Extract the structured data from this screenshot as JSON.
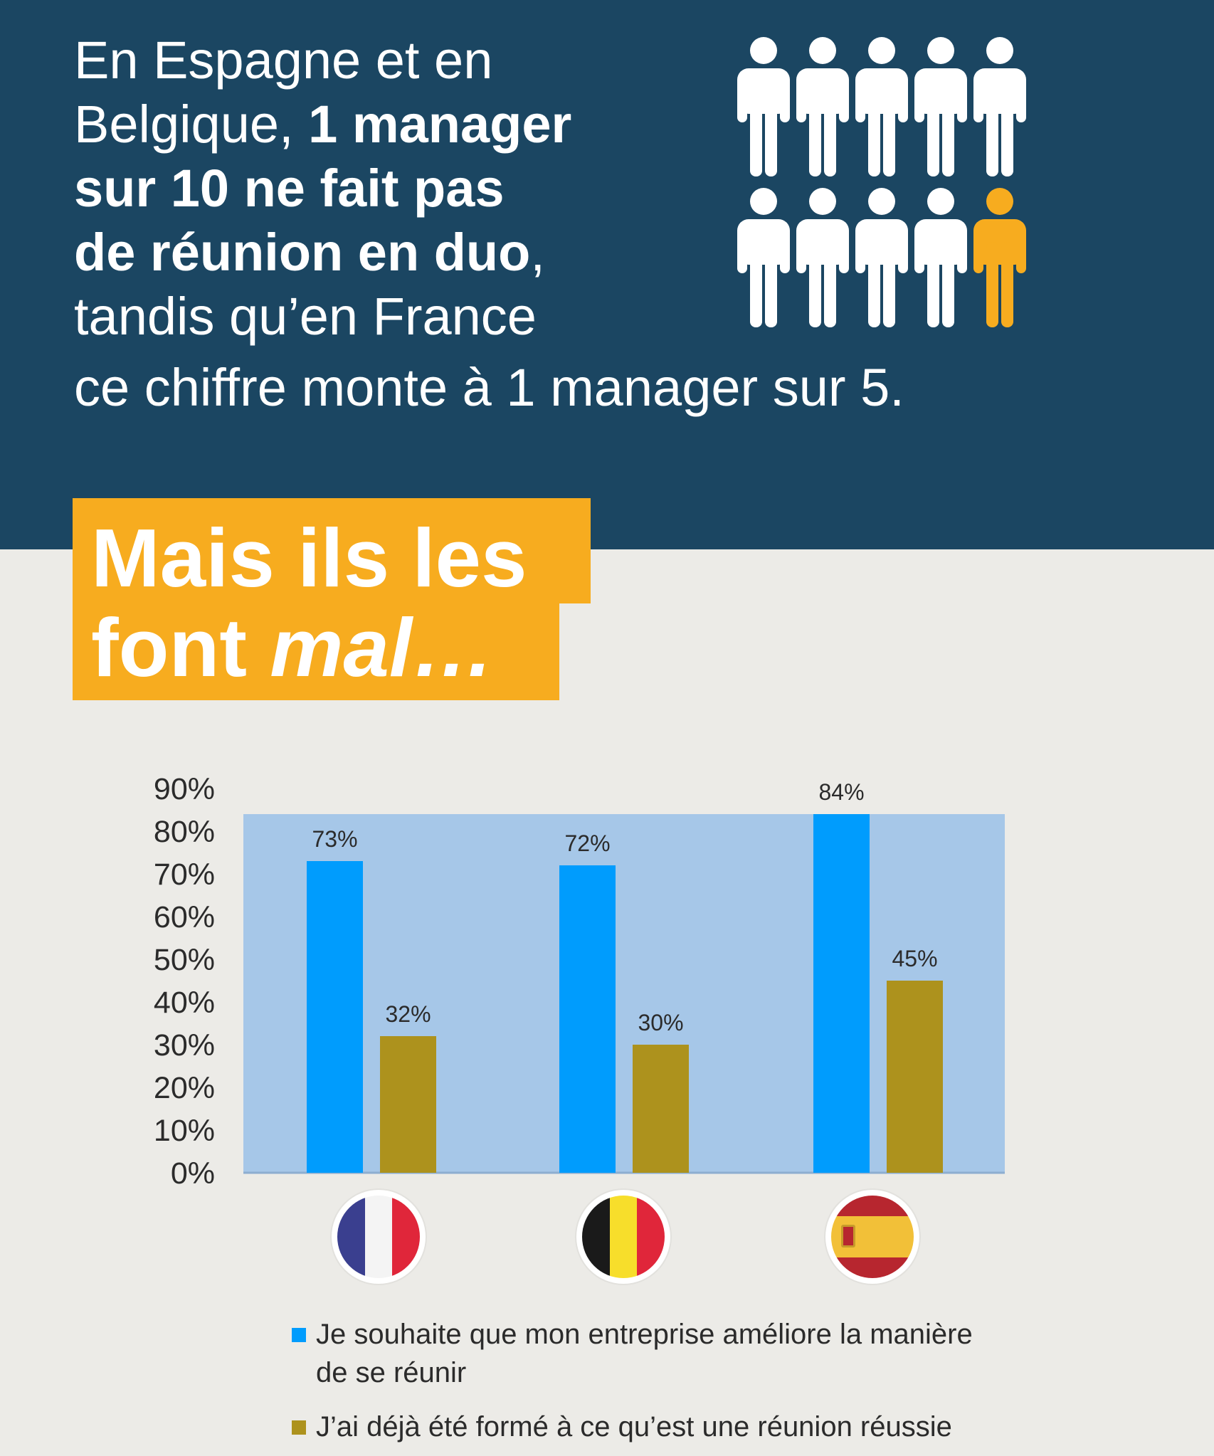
{
  "headline": {
    "line1": "En Espagne et en",
    "line2_normal": "Belgique, ",
    "line2_bold": "1 manager",
    "line3_bold": "sur 10 ne fait pas",
    "line4_bold": "de réunion en duo",
    "line4_tail": ",",
    "line5": "tandis qu’en France",
    "line6": "ce chiffre monte à 1 manager sur 5."
  },
  "people_icons": {
    "total": 10,
    "highlighted_index": 9,
    "color_default": "#FFFFFF",
    "color_highlight": "#F7AC1F"
  },
  "banner": {
    "line1": "Mais ils les",
    "line2_normal": "font ",
    "line2_italic": "mal…"
  },
  "colors": {
    "navy": "#1B4662",
    "orange": "#F7AC1F",
    "background": "#ECEBE7",
    "plot_bg": "#A6C7E8",
    "series1": "#009CFD",
    "series2": "#AD921D"
  },
  "chart_data": {
    "type": "bar",
    "categories": [
      "France",
      "Belgique",
      "Espagne"
    ],
    "series": [
      {
        "name": "Je souhaite que mon entreprise améliore la manière de se réunir",
        "values": [
          73,
          72,
          84
        ],
        "labels": [
          "73%",
          "72%",
          "84%"
        ],
        "color": "#009CFD"
      },
      {
        "name": "J’ai déjà été formé à ce qu’est une réunion réussie",
        "values": [
          32,
          30,
          45
        ],
        "labels": [
          "32%",
          "30%",
          "45%"
        ],
        "color": "#AD921D"
      }
    ],
    "yticks": [
      "0%",
      "10%",
      "20%",
      "30%",
      "40%",
      "50%",
      "60%",
      "70%",
      "80%",
      "90%"
    ],
    "ylim": [
      0,
      90
    ],
    "plot_band_max": 84,
    "grid": false,
    "legend_placement": "bottom"
  },
  "flags": [
    "flag-france",
    "flag-belgium",
    "flag-spain"
  ],
  "legend": [
    {
      "text_line1": "Je souhaite que mon entreprise améliore la manière",
      "text_line2": "de se réunir"
    },
    {
      "text_line1": "J’ai déjà été formé à ce qu’est une réunion réussie"
    }
  ]
}
